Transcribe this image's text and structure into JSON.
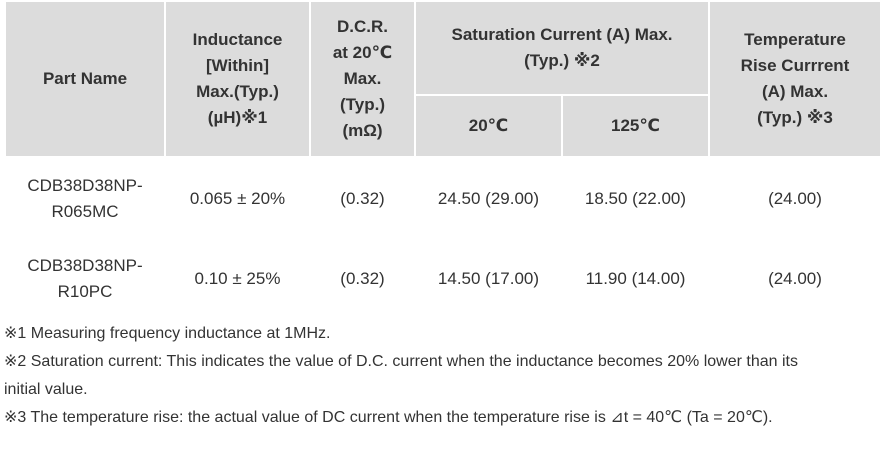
{
  "table": {
    "headers": {
      "part_name": [
        "Part Name"
      ],
      "inductance": [
        "Inductance",
        "[Within]",
        "Max.(Typ.)",
        "(µH)※1"
      ],
      "dcr": [
        "D.C.R.",
        "at 20℃",
        "Max.",
        "(Typ.)",
        "(mΩ)"
      ],
      "saturation": [
        "Saturation Current (A) Max.",
        "(Typ.) ※2"
      ],
      "sat_20": [
        "20℃"
      ],
      "sat_125": [
        "125℃"
      ],
      "temp_rise": [
        "Temperature",
        "Rise Currrent",
        "(A) Max.",
        "(Typ.) ※3"
      ]
    },
    "rows": [
      {
        "part_name": [
          "CDB38D38NP-",
          "R065MC"
        ],
        "inductance": "0.065 ± 20%",
        "dcr": "(0.32)",
        "sat_20": "24.50 (29.00)",
        "sat_125": "18.50 (22.00)",
        "temp_rise": "(24.00)"
      },
      {
        "part_name": [
          "CDB38D38NP-",
          "R10PC"
        ],
        "inductance": "0.10 ± 25%",
        "dcr": "(0.32)",
        "sat_20": "14.50 (17.00)",
        "sat_125": "11.90 (14.00)",
        "temp_rise": "(24.00)"
      }
    ]
  },
  "notes": [
    [
      "※1 Measuring frequency inductance at 1MHz."
    ],
    [
      "※2 Saturation current: This indicates the value of D.C. current when the inductance becomes 20% lower than its",
      "initial value."
    ],
    [
      "※3 The temperature rise: the actual value of DC current when the temperature rise is ⊿t = 40℃ (Ta = 20℃)."
    ]
  ],
  "colors": {
    "header_bg": "#dcdcdc",
    "text": "#333333",
    "background": "#ffffff"
  }
}
